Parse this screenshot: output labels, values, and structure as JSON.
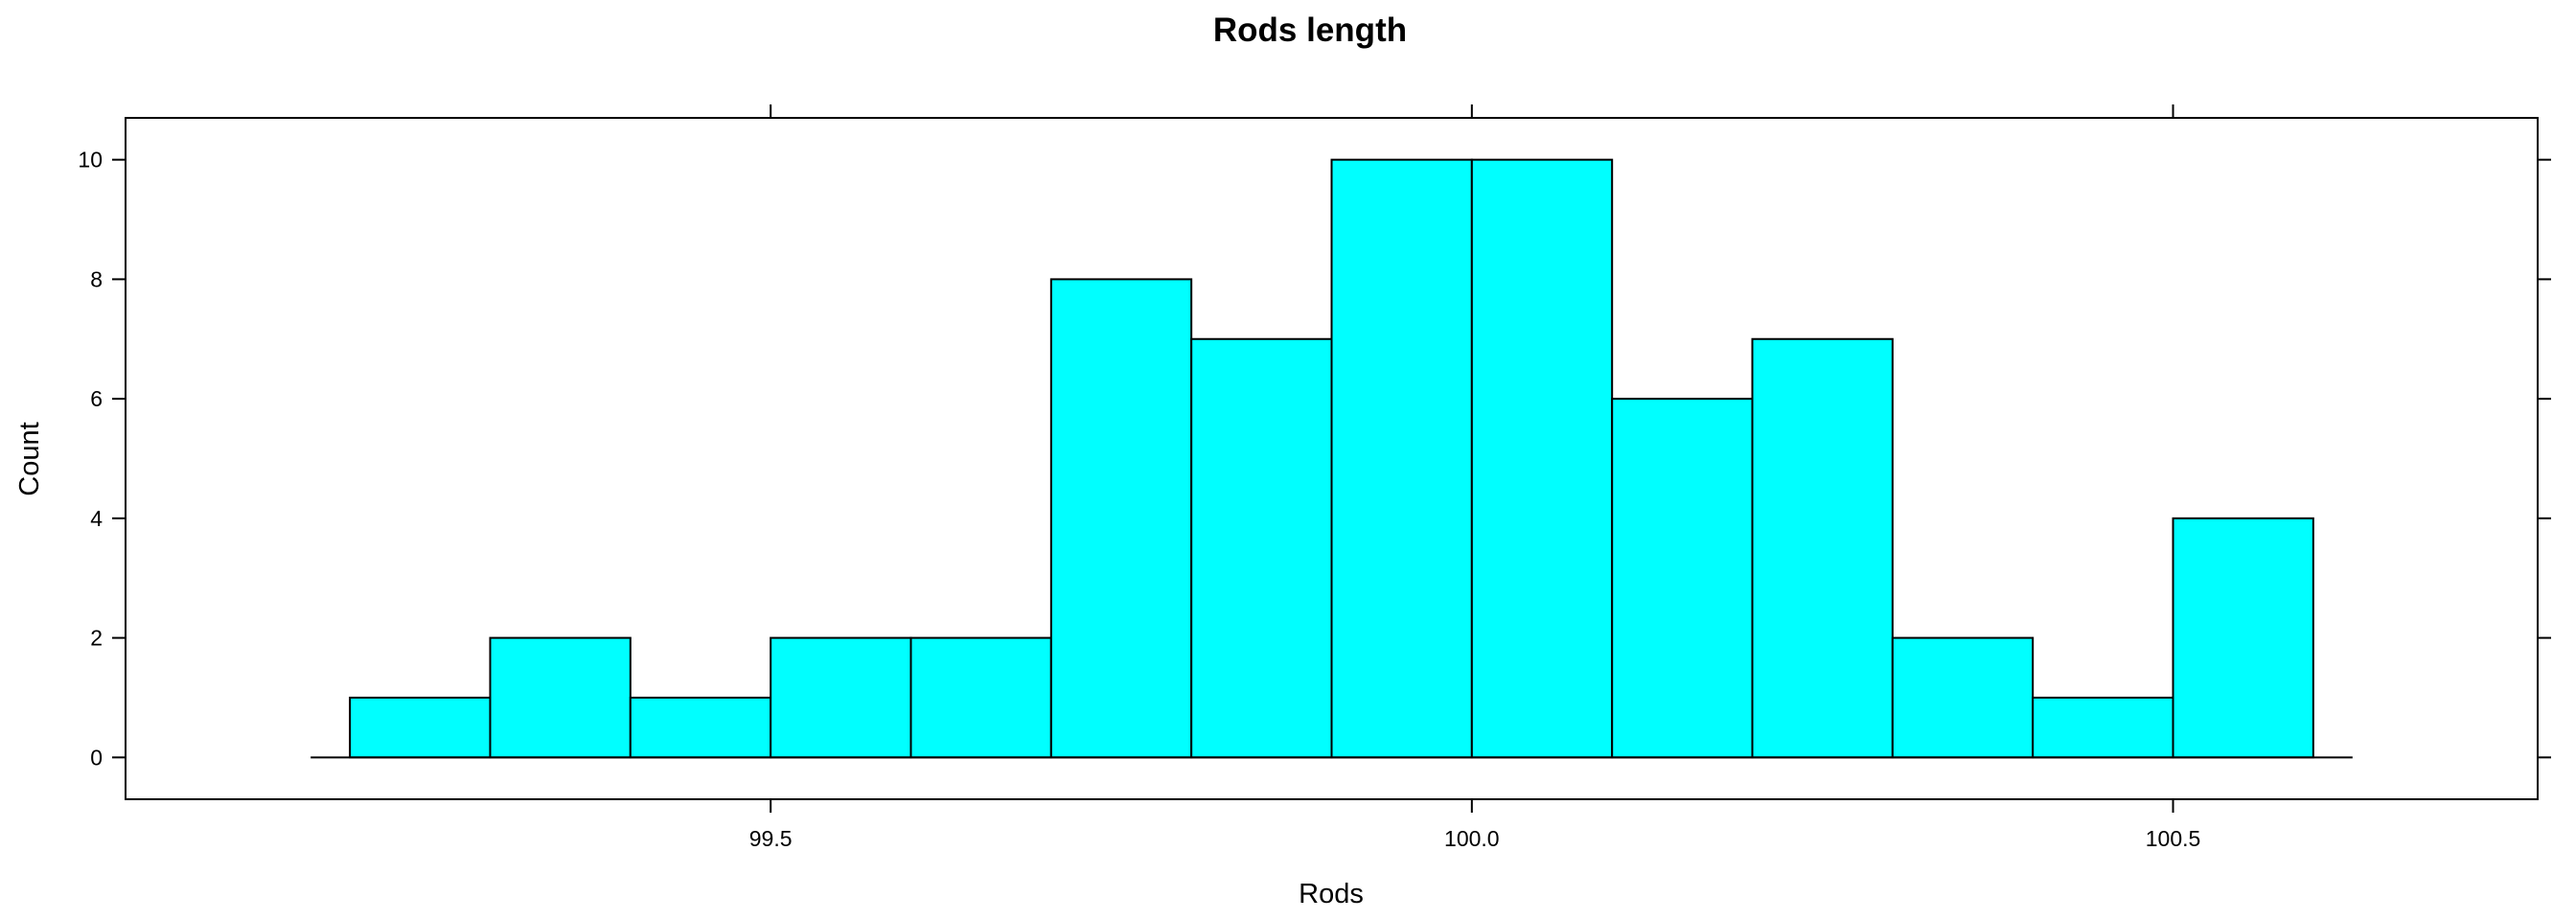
{
  "chart_data": {
    "type": "bar",
    "title": "Rods length",
    "xlabel": "Rods",
    "ylabel": "Count",
    "bar_color": "#00FFFF",
    "bin_edges": [
      99.2,
      99.3,
      99.4,
      99.5,
      99.6,
      99.7,
      99.8,
      99.9,
      100.0,
      100.1,
      100.2,
      100.3,
      100.4,
      100.5,
      100.6
    ],
    "values": [
      1,
      2,
      1,
      2,
      2,
      8,
      7,
      10,
      10,
      6,
      7,
      2,
      1,
      4
    ],
    "xlim": [
      99.04,
      100.76
    ],
    "ylim": [
      -0.7,
      10.7
    ],
    "x_ticks": [
      {
        "value": 99.5,
        "label": "99.5"
      },
      {
        "value": 100.0,
        "label": "100.0"
      },
      {
        "value": 100.5,
        "label": "100.5"
      }
    ],
    "y_ticks": [
      {
        "value": 0,
        "label": "0"
      },
      {
        "value": 2,
        "label": "2"
      },
      {
        "value": 4,
        "label": "4"
      },
      {
        "value": 6,
        "label": "6"
      },
      {
        "value": 8,
        "label": "8"
      },
      {
        "value": 10,
        "label": "10"
      }
    ],
    "grid": false
  }
}
